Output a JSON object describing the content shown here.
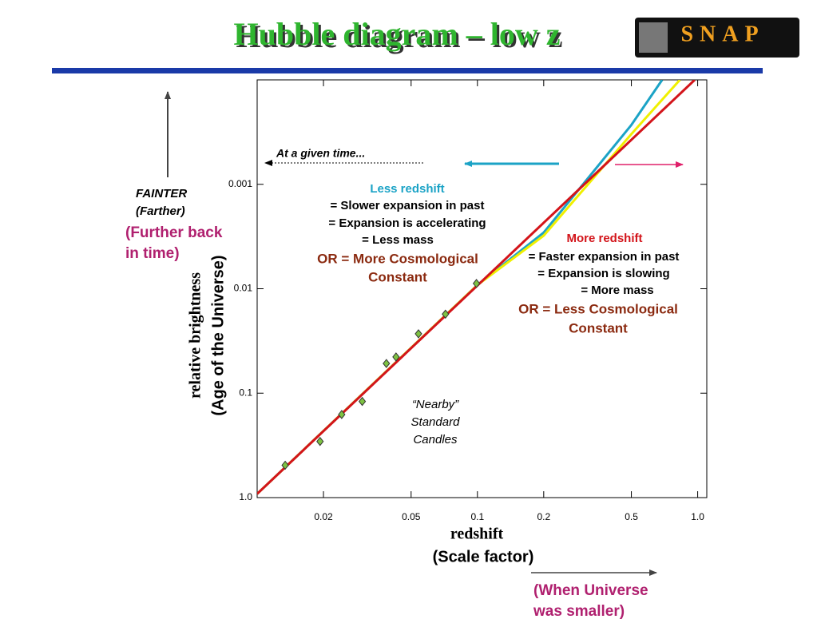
{
  "slide": {
    "title": "Hubble diagram – low z",
    "logo_text": "SNAP",
    "left_note": [
      "FAINTER",
      "(Farther)"
    ],
    "left_note_time": [
      "(Further back",
      "in time)"
    ],
    "bottom_note": [
      "(When Universe",
      "was smaller)"
    ]
  },
  "chart_data": {
    "type": "scatter",
    "xlabel": "redshift",
    "xlabel_sub": "(Scale factor)",
    "ylabel": "relative brightness",
    "ylabel_sub": "(Age of the Universe)",
    "xlog": true,
    "ylog": true,
    "xlim": [
      0.01,
      1.1
    ],
    "ylim": [
      1.0,
      0.0001
    ],
    "xticks": [
      0.02,
      0.05,
      0.1,
      0.2,
      0.5,
      {
        "value": 1,
        "label": "1.0"
      }
    ],
    "yticks": [
      0.001,
      0.01,
      0.1,
      {
        "value": 1,
        "label": "1.0"
      }
    ],
    "points": {
      "color": "#7dc242",
      "x": [
        0.0134,
        0.0193,
        0.0242,
        0.03,
        0.0386,
        0.0427,
        0.054,
        0.0716,
        0.099
      ],
      "values": [
        0.49,
        0.29,
        0.16,
        0.12,
        0.052,
        0.045,
        0.027,
        0.0175,
        0.0089
      ]
    },
    "lines": [
      {
        "color": "#1ba3c6",
        "x": [
          0.01,
          0.1,
          0.2,
          0.5,
          0.69
        ],
        "values": [
          0.92,
          0.0092,
          0.0029,
          0.00027,
          0.0001
        ]
      },
      {
        "color": "#f0f000",
        "x": [
          0.01,
          0.1,
          0.2,
          0.5,
          0.83
        ],
        "values": [
          0.92,
          0.0092,
          0.0031,
          0.00033,
          0.0001
        ]
      },
      {
        "color": "#d3141a",
        "x": [
          0.01,
          0.97
        ],
        "values": [
          0.92,
          0.0001
        ]
      }
    ],
    "annotations": {
      "given_time": "At a given time...",
      "less": [
        "Less redshift",
        "= Slower expansion in past",
        "= Expansion is accelerating",
        "= Less mass",
        "OR = More Cosmological",
        "Constant"
      ],
      "more": [
        "More redshift",
        "= Faster expansion in past",
        "= Expansion is slowing",
        "= More mass",
        "OR = Less Cosmological",
        "Constant"
      ],
      "nearby": [
        "“Nearby”",
        "Standard",
        "Candles"
      ]
    }
  }
}
